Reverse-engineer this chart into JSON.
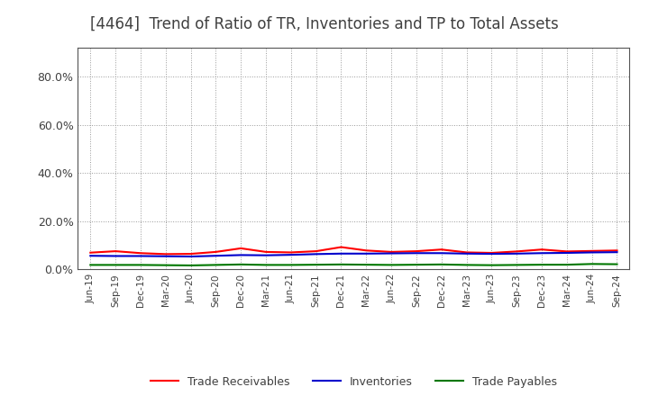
{
  "title": "[4464]  Trend of Ratio of TR, Inventories and TP to Total Assets",
  "x_labels": [
    "Jun-19",
    "Sep-19",
    "Dec-19",
    "Mar-20",
    "Jun-20",
    "Sep-20",
    "Dec-20",
    "Mar-21",
    "Jun-21",
    "Sep-21",
    "Dec-21",
    "Mar-22",
    "Jun-22",
    "Sep-22",
    "Dec-22",
    "Mar-23",
    "Jun-23",
    "Sep-23",
    "Dec-23",
    "Mar-24",
    "Jun-24",
    "Sep-24"
  ],
  "trade_receivables": [
    0.069,
    0.075,
    0.067,
    0.063,
    0.064,
    0.072,
    0.087,
    0.072,
    0.07,
    0.075,
    0.092,
    0.078,
    0.072,
    0.075,
    0.082,
    0.07,
    0.068,
    0.074,
    0.082,
    0.074,
    0.076,
    0.078
  ],
  "inventories": [
    0.056,
    0.055,
    0.055,
    0.054,
    0.053,
    0.056,
    0.059,
    0.058,
    0.06,
    0.063,
    0.065,
    0.065,
    0.066,
    0.067,
    0.067,
    0.065,
    0.064,
    0.065,
    0.067,
    0.068,
    0.07,
    0.071
  ],
  "trade_payables": [
    0.018,
    0.018,
    0.018,
    0.017,
    0.016,
    0.018,
    0.02,
    0.018,
    0.018,
    0.019,
    0.02,
    0.019,
    0.018,
    0.019,
    0.02,
    0.018,
    0.017,
    0.018,
    0.019,
    0.019,
    0.022,
    0.021
  ],
  "color_tr": "#FF0000",
  "color_inv": "#0000CC",
  "color_tp": "#007700",
  "ylim": [
    0.0,
    0.92
  ],
  "yticks": [
    0.0,
    0.2,
    0.4,
    0.6,
    0.8
  ],
  "background_color": "#FFFFFF",
  "grid_color": "#999999",
  "title_fontsize": 12,
  "title_color": "#404040",
  "tick_color": "#404040",
  "legend_labels": [
    "Trade Receivables",
    "Inventories",
    "Trade Payables"
  ]
}
